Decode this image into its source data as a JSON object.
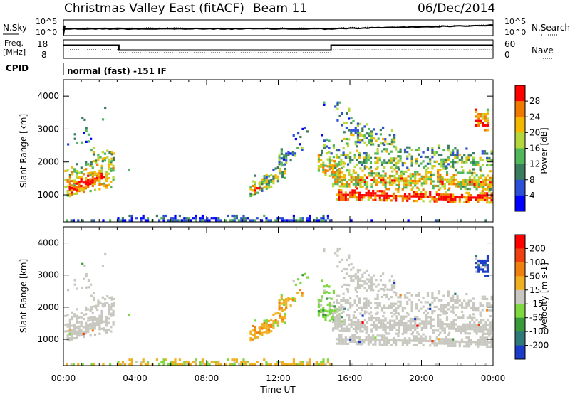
{
  "header": {
    "title": "Christmas Valley East (fitACF)",
    "beam": "Beam 11",
    "date": "06/Dec/2014"
  },
  "sky_panel": {
    "left_label": "N.Sky",
    "right_label": "N.Search",
    "left_ticks": [
      "10^5",
      "10^0"
    ],
    "right_ticks": [
      "10^5",
      "10^0"
    ]
  },
  "freq_panel": {
    "left_label": "Freq.",
    "left_units": "[MHz]",
    "right_label": "Nave",
    "left_ticks": [
      "18",
      "8"
    ],
    "right_ticks": [
      "60",
      "0"
    ]
  },
  "cpid": {
    "label": "CPID",
    "text": "normal (fast) -151 IF"
  },
  "chart_data": [
    {
      "type": "heatmap",
      "title": "",
      "ylabel": "Slant Range [km]",
      "xlabel": "",
      "xlim": [
        "00:00",
        "24:00"
      ],
      "ylim": [
        180,
        4500
      ],
      "yticks": [
        "1000",
        "2000",
        "3000",
        "4000"
      ],
      "xticks": [
        "00:00",
        "04:00",
        "08:00",
        "12:00",
        "16:00",
        "20:00",
        "00:00"
      ],
      "colorbar": {
        "label": "Power [dB]",
        "ticks": [
          "4",
          "8",
          "12",
          "16",
          "20",
          "24",
          "28"
        ],
        "colors": [
          "#0000ff",
          "#2d4fd6",
          "#3a7d5e",
          "#50b85a",
          "#b4d83c",
          "#f5b800",
          "#f07a00",
          "#ff0000"
        ]
      }
    },
    {
      "type": "heatmap",
      "title": "",
      "ylabel": "Slant Range [km]",
      "xlabel": "Time UT",
      "xlim": [
        "00:00",
        "24:00"
      ],
      "ylim": [
        180,
        4500
      ],
      "yticks": [
        "1000",
        "2000",
        "3000",
        "4000"
      ],
      "xticks": [
        "00:00",
        "04:00",
        "08:00",
        "12:00",
        "16:00",
        "20:00",
        "00:00"
      ],
      "colorbar": {
        "label": "Velocity [m s-1]",
        "ticks": [
          "200",
          "100",
          "50",
          "15",
          "-15",
          "-50",
          "-100",
          "-200"
        ],
        "colors": [
          "#1a3cc8",
          "#2f7a78",
          "#3a9a3a",
          "#7ed840",
          "#c8c8c0",
          "#f0b020",
          "#f08010",
          "#f04010",
          "#ff0000"
        ]
      }
    }
  ]
}
